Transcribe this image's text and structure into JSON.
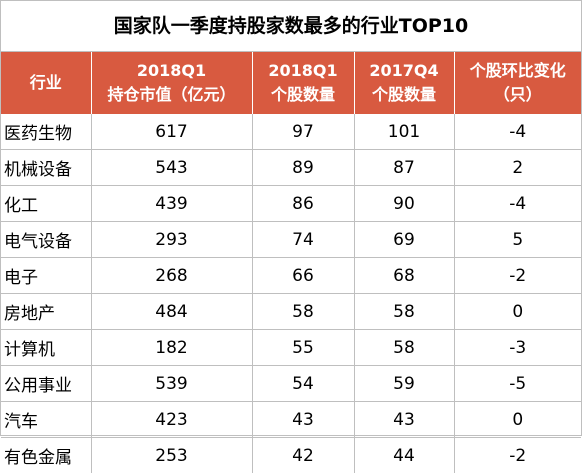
{
  "title": "国家队一季度持股家数最多的行业TOP10",
  "header": {
    "industry": "行业",
    "market_value": [
      "2018Q1",
      "持仓市值（亿元）"
    ],
    "count_2018q1": [
      "2018Q1",
      "个股数量"
    ],
    "count_2017q4": [
      "2017Q4",
      "个股数量"
    ],
    "qoq_change": [
      "个股环比变化",
      "（只）"
    ]
  },
  "rows": [
    {
      "industry": "医药生物",
      "market_value": "617",
      "count_2018q1": "97",
      "count_2017q4": "101",
      "qoq_change": "-4"
    },
    {
      "industry": "机械设备",
      "market_value": "543",
      "count_2018q1": "89",
      "count_2017q4": "87",
      "qoq_change": "2"
    },
    {
      "industry": "化工",
      "market_value": "439",
      "count_2018q1": "86",
      "count_2017q4": "90",
      "qoq_change": "-4"
    },
    {
      "industry": "电气设备",
      "market_value": "293",
      "count_2018q1": "74",
      "count_2017q4": "69",
      "qoq_change": "5"
    },
    {
      "industry": "电子",
      "market_value": "268",
      "count_2018q1": "66",
      "count_2017q4": "68",
      "qoq_change": "-2"
    },
    {
      "industry": "房地产",
      "market_value": "484",
      "count_2018q1": "58",
      "count_2017q4": "58",
      "qoq_change": "0"
    },
    {
      "industry": "计算机",
      "market_value": "182",
      "count_2018q1": "55",
      "count_2017q4": "58",
      "qoq_change": "-3"
    },
    {
      "industry": "公用事业",
      "market_value": "539",
      "count_2018q1": "54",
      "count_2017q4": "59",
      "qoq_change": "-5"
    },
    {
      "industry": "汽车",
      "market_value": "423",
      "count_2018q1": "43",
      "count_2017q4": "43",
      "qoq_change": "0"
    },
    {
      "industry": "有色金属",
      "market_value": "253",
      "count_2018q1": "42",
      "count_2017q4": "44",
      "qoq_change": "-2"
    }
  ],
  "colors": {
    "header_bg": "#d85a40",
    "header_text": "#ffffff",
    "border": "#bfbfbf"
  }
}
